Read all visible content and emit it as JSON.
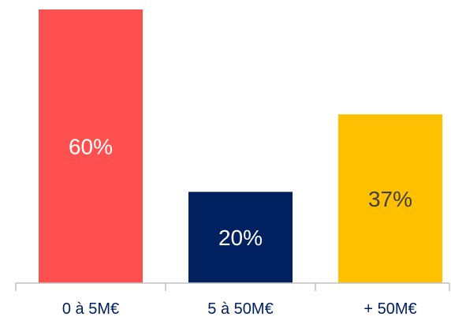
{
  "chart_data": {
    "type": "bar",
    "categories": [
      "0 à 5M€",
      "5 à 50M€",
      "+ 50M€"
    ],
    "values": [
      60,
      20,
      37
    ],
    "data_labels": [
      "60%",
      "20%",
      "37%"
    ],
    "colors": [
      "#FF5050",
      "#002060",
      "#FFC000"
    ],
    "label_colors": [
      "#FFFFFF",
      "#FFFFFF",
      "#404040"
    ],
    "ylim": [
      0,
      60
    ],
    "grid": false,
    "legend": "none",
    "axis_color": "#BFBFBF",
    "tick_label_color": "#002060"
  }
}
